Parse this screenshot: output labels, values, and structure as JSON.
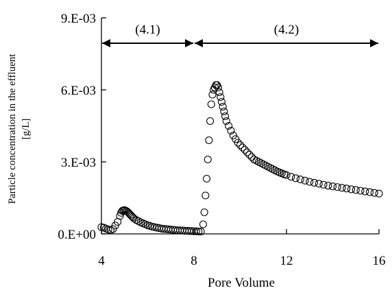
{
  "chart_data": {
    "type": "scatter",
    "title": "",
    "xlabel": "Pore Volume",
    "ylabel_line1": "Particle concentration in the effluent",
    "ylabel_line2": "[g/L]",
    "xlim": [
      4,
      16
    ],
    "ylim": [
      0,
      0.009
    ],
    "x_ticks": [
      4,
      8,
      12,
      16
    ],
    "x_tick_labels": [
      "4",
      "8",
      "12",
      "16"
    ],
    "y_ticks": [
      0,
      0.003,
      0.006,
      0.009
    ],
    "y_tick_labels": [
      "0.E+00",
      "3.E-03",
      "6.E-03",
      "9.E-03"
    ],
    "grid": false,
    "legend": "none",
    "marker": "open-circle",
    "colors": {
      "marker": "#000000",
      "axis": "#000000"
    },
    "regions": [
      {
        "label": "(4.1)",
        "x_start": 4.0,
        "x_end": 8.0
      },
      {
        "label": "(4.2)",
        "x_start": 8.0,
        "x_end": 16.0
      }
    ],
    "x": [
      4.0,
      4.1,
      4.2,
      4.3,
      4.4,
      4.5,
      4.6,
      4.7,
      4.8,
      4.85,
      4.9,
      4.95,
      5.0,
      5.05,
      5.1,
      5.15,
      5.2,
      5.25,
      5.3,
      5.35,
      5.4,
      5.5,
      5.6,
      5.7,
      5.8,
      5.9,
      6.0,
      6.1,
      6.2,
      6.3,
      6.4,
      6.5,
      6.6,
      6.7,
      6.8,
      6.9,
      7.0,
      7.1,
      7.2,
      7.3,
      7.4,
      7.5,
      7.6,
      7.7,
      7.8,
      7.9,
      8.0,
      8.1,
      8.2,
      8.3,
      8.4,
      8.45,
      8.5,
      8.55,
      8.6,
      8.65,
      8.7,
      8.75,
      8.8,
      8.85,
      8.9,
      8.95,
      9.0,
      9.05,
      9.1,
      9.15,
      9.2,
      9.25,
      9.3,
      9.35,
      9.4,
      9.5,
      9.6,
      9.7,
      9.8,
      9.9,
      10.0,
      10.1,
      10.2,
      10.3,
      10.4,
      10.5,
      10.6,
      10.7,
      10.8,
      10.9,
      11.0,
      11.1,
      11.2,
      11.3,
      11.4,
      11.5,
      11.6,
      11.7,
      11.8,
      11.9,
      12.0,
      12.2,
      12.4,
      12.6,
      12.8,
      13.0,
      13.2,
      13.4,
      13.6,
      13.8,
      14.0,
      14.2,
      14.4,
      14.6,
      14.8,
      15.0,
      15.2,
      15.4,
      15.6,
      15.8,
      16.0
    ],
    "y": [
      0.00028,
      0.00026,
      0.00022,
      0.00018,
      0.00016,
      0.0002,
      0.00035,
      0.0005,
      0.00075,
      0.00088,
      0.00096,
      0.00098,
      0.00099,
      0.00097,
      0.00094,
      0.0009,
      0.00085,
      0.0008,
      0.00075,
      0.0007,
      0.00065,
      0.00058,
      0.00053,
      0.00048,
      0.00044,
      0.0004,
      0.00036,
      0.00033,
      0.0003,
      0.00028,
      0.00026,
      0.00024,
      0.00022,
      0.00021,
      0.0002,
      0.00019,
      0.00018,
      0.00017,
      0.00016,
      0.00015,
      0.00015,
      0.00014,
      0.00013,
      0.00013,
      0.00012,
      0.00012,
      0.00011,
      0.00011,
      0.0001,
      0.0001,
      0.0004,
      0.0009,
      0.0016,
      0.0023,
      0.0031,
      0.0039,
      0.0047,
      0.0054,
      0.0058,
      0.006,
      0.0061,
      0.0062,
      0.0062,
      0.0061,
      0.0059,
      0.0057,
      0.0055,
      0.0053,
      0.0051,
      0.0049,
      0.0047,
      0.0045,
      0.0043,
      0.0041,
      0.00395,
      0.0038,
      0.0037,
      0.0036,
      0.0035,
      0.0034,
      0.0033,
      0.0032,
      0.0031,
      0.00305,
      0.003,
      0.00295,
      0.0029,
      0.00285,
      0.0028,
      0.00275,
      0.0027,
      0.00265,
      0.0026,
      0.00256,
      0.00252,
      0.00248,
      0.00245,
      0.00238,
      0.00232,
      0.00227,
      0.00222,
      0.00217,
      0.00213,
      0.00209,
      0.00205,
      0.00201,
      0.00198,
      0.00195,
      0.00192,
      0.00189,
      0.00186,
      0.00183,
      0.0018,
      0.00177,
      0.00174,
      0.00171,
      0.00168
    ]
  }
}
